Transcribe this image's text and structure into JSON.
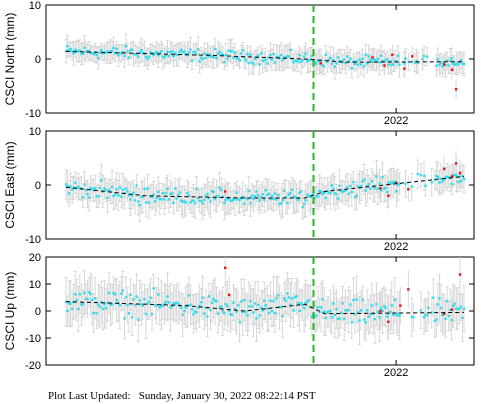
{
  "footer": {
    "label": "Plot Last Updated:",
    "timestamp": "Sunday, January 30, 2022 08:22:14 PST"
  },
  "colors": {
    "normal_point": "#33ddee",
    "flagged_point": "#ee1111",
    "error_bar": "#cfcfcf",
    "trend_line": "#000000",
    "event_line": "#22bb22"
  },
  "chart_data": [
    {
      "type": "scatter",
      "ylabel": "CSCI North (mm)",
      "ylim": [
        -10,
        10
      ],
      "yticks": [
        -10,
        0,
        10
      ],
      "xticklabel": "2022",
      "trend": [
        [
          0.0,
          1.4
        ],
        [
          0.35,
          0.7
        ],
        [
          0.6,
          0.0
        ],
        [
          0.7,
          -0.6
        ],
        [
          1.0,
          -0.5
        ]
      ],
      "noise": 1.0,
      "error": 1.8,
      "flagged": [
        {
          "x": 0.64,
          "y": -0.8
        },
        {
          "x": 0.77,
          "y": 0.3
        },
        {
          "x": 0.8,
          "y": -1.2
        },
        {
          "x": 0.82,
          "y": 0.8
        },
        {
          "x": 0.85,
          "y": -1.8
        },
        {
          "x": 0.87,
          "y": 0.5
        },
        {
          "x": 0.95,
          "y": -1.0
        },
        {
          "x": 0.97,
          "y": -2.0
        },
        {
          "x": 0.98,
          "y": -5.6
        }
      ]
    },
    {
      "type": "scatter",
      "ylabel": "CSCI East (mm)",
      "ylim": [
        -10,
        10
      ],
      "yticks": [
        -10,
        0,
        10
      ],
      "xticklabel": "2022",
      "trend": [
        [
          0.0,
          -0.4
        ],
        [
          0.2,
          -2.0
        ],
        [
          0.45,
          -2.4
        ],
        [
          0.6,
          -2.4
        ],
        [
          0.65,
          -1.2
        ],
        [
          1.0,
          1.6
        ]
      ],
      "noise": 1.3,
      "error": 2.4,
      "flagged": [
        {
          "x": 0.4,
          "y": -1.2
        },
        {
          "x": 0.79,
          "y": -0.6
        },
        {
          "x": 0.81,
          "y": -2.0
        },
        {
          "x": 0.83,
          "y": 0.4
        },
        {
          "x": 0.86,
          "y": -0.8
        },
        {
          "x": 0.95,
          "y": 3.0
        },
        {
          "x": 0.97,
          "y": 1.6
        },
        {
          "x": 0.98,
          "y": 4.0
        },
        {
          "x": 0.99,
          "y": 2.2
        }
      ]
    },
    {
      "type": "scatter",
      "ylabel": "CSCI Up (mm)",
      "ylim": [
        -20,
        20
      ],
      "yticks": [
        -20,
        -10,
        0,
        10,
        20
      ],
      "xticklabel": "2022",
      "trend": [
        [
          0.0,
          3.5
        ],
        [
          0.3,
          2.0
        ],
        [
          0.45,
          0.0
        ],
        [
          0.6,
          2.5
        ],
        [
          0.65,
          -1.0
        ],
        [
          1.0,
          -0.5
        ]
      ],
      "noise": 4.0,
      "error": 7.0,
      "flagged": [
        {
          "x": 0.4,
          "y": 16.0
        },
        {
          "x": 0.41,
          "y": 6.0
        },
        {
          "x": 0.79,
          "y": 0.0
        },
        {
          "x": 0.81,
          "y": -4.0
        },
        {
          "x": 0.84,
          "y": 2.0
        },
        {
          "x": 0.86,
          "y": 8.0
        },
        {
          "x": 0.95,
          "y": -1.0
        },
        {
          "x": 0.97,
          "y": 0.5
        },
        {
          "x": 0.99,
          "y": 13.5
        }
      ]
    }
  ]
}
